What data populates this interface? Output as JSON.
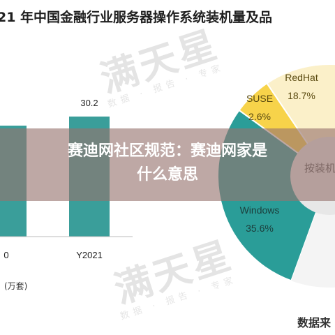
{
  "title": "21 年中国金融行业服务器操作系统装机量及品",
  "watermarks": {
    "logo_text": "满天星",
    "subtitle": "数据 · 报告 · 专家"
  },
  "banner": {
    "line1": "赛迪网社区规范：赛迪网家是",
    "line2": "什么意思"
  },
  "unit_label": "(万套)",
  "source_label": "数据来",
  "colors": {
    "bar": "#3a9e9a",
    "windows": "#2a9d98",
    "suse": "#f7d34a",
    "redhat": "#fbf0c9",
    "center": "#e7e7e7"
  },
  "chart_data": [
    {
      "type": "bar",
      "categories": [
        "0",
        "Y2021"
      ],
      "values": [
        null,
        30.2
      ],
      "data_labels": [
        "",
        "30.2"
      ],
      "unit": "(万套)"
    },
    {
      "type": "pie",
      "slices": [
        {
          "name": "Windows",
          "value": 35.6,
          "label": "35.6%"
        },
        {
          "name": "SUSE",
          "value": 2.6,
          "label": "2.6%"
        },
        {
          "name": "RedHat",
          "value": 18.7,
          "label": "18.7%"
        }
      ],
      "center_label": "按装机"
    }
  ]
}
